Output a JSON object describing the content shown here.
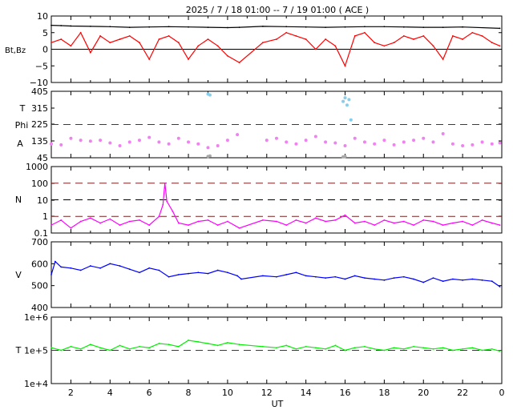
{
  "chart_data": {
    "title": "2025 /  7 / 18   01:00 --  7 / 19   01:00 ( ACE )",
    "xlabel": "UT",
    "x_ticks": [
      "2",
      "4",
      "6",
      "8",
      "10",
      "12",
      "14",
      "16",
      "18",
      "20",
      "22",
      "0"
    ],
    "panels": [
      {
        "id": "mag",
        "type": "line",
        "ylabel": "Bt,Bz",
        "ylim": [
          -10,
          10
        ],
        "y_ticks": [
          "10",
          "5",
          "0",
          "−5",
          "−10"
        ],
        "reference_lines": [
          {
            "value": 0,
            "color": "#000000",
            "style": "solid"
          }
        ],
        "series": [
          {
            "name": "Bt",
            "color": "#000000",
            "x": [
              1,
              1.5,
              2,
              3,
              4,
              5,
              6,
              7,
              8,
              9,
              10,
              10.6,
              11.8,
              13,
              14,
              15,
              16,
              17,
              18,
              19,
              20,
              21,
              22,
              23.9
            ],
            "values": [
              7.2,
              7.1,
              7,
              6.9,
              6.8,
              6.6,
              6.7,
              6.8,
              6.7,
              6.6,
              6.5,
              6.6,
              6.9,
              6.8,
              6.7,
              6.6,
              6.7,
              6.8,
              6.8,
              6.7,
              6.6,
              6.6,
              6.7,
              6.3
            ]
          },
          {
            "name": "Bz",
            "color": "#ff0000",
            "x": [
              1,
              1.5,
              2,
              2.5,
              3,
              3.5,
              4,
              4.5,
              5,
              5.5,
              6,
              6.5,
              7,
              7.5,
              8,
              8.5,
              9,
              9.5,
              10,
              10.6,
              11.8,
              12.5,
              13,
              13.5,
              14,
              14.5,
              15,
              15.5,
              16,
              16.5,
              17,
              17.5,
              18,
              18.5,
              19,
              19.5,
              20,
              20.5,
              21,
              21.5,
              22,
              22.5,
              23,
              23.5,
              23.9
            ],
            "values": [
              2,
              3,
              1,
              5,
              -1,
              4,
              2,
              3,
              4,
              2,
              -3,
              3,
              4,
              2,
              -3,
              1,
              3,
              1,
              -2,
              -4,
              2,
              3,
              5,
              4,
              3,
              0,
              3,
              1,
              -5,
              4,
              5,
              2,
              1,
              2,
              4,
              3,
              4,
              1,
              -3,
              4,
              3,
              5,
              4,
              2,
              1
            ]
          }
        ]
      },
      {
        "id": "angle",
        "type": "scatter",
        "ylabel_lines": [
          "T",
          "Phi",
          "A"
        ],
        "y_tick_texts": [
          "405",
          "315",
          "225",
          "135",
          "45"
        ],
        "ylim": [
          45,
          405
        ],
        "reference_lines": [
          {
            "value": 225,
            "color": "#7a2020",
            "style": "dashed"
          }
        ],
        "series": [
          {
            "name": "Phi",
            "color": "#ee82ee",
            "x": [
              1,
              1.5,
              2,
              2.5,
              3,
              3.5,
              4,
              4.5,
              5,
              5.5,
              6,
              6.5,
              7,
              7.5,
              8,
              8.5,
              9,
              9.5,
              10,
              10.5,
              12,
              12.5,
              13,
              13.5,
              14,
              14.5,
              15,
              15.5,
              16,
              16.5,
              17,
              17.5,
              18,
              18.5,
              19,
              19.5,
              20,
              20.5,
              21,
              21.5,
              22,
              22.5,
              23,
              23.5,
              23.9
            ],
            "values": [
              120,
              115,
              150,
              140,
              135,
              140,
              125,
              110,
              130,
              140,
              155,
              130,
              120,
              150,
              130,
              120,
              100,
              110,
              140,
              170,
              140,
              150,
              130,
              120,
              140,
              160,
              130,
              125,
              110,
              150,
              130,
              120,
              140,
              115,
              130,
              140,
              150,
              130,
              175,
              120,
              110,
              115,
              130,
              120,
              125
            ]
          },
          {
            "name": "Theta",
            "color": "#87ceeb",
            "x": [
              9,
              9.1,
              15.9,
              16,
              16.1,
              16.2,
              16.3
            ],
            "values": [
              390,
              385,
              350,
              370,
              330,
              360,
              250
            ]
          },
          {
            "name": "low",
            "color": "#a8a8a8",
            "x": [
              9,
              9.1,
              15.9,
              16
            ],
            "values": [
              52,
              55,
              50,
              52
            ]
          }
        ]
      },
      {
        "id": "density",
        "type": "line",
        "ylabel": "N",
        "y_tick_texts": [
          "1000",
          "100",
          "10",
          "1",
          "0.1"
        ],
        "log_ylim": [
          0.1,
          1000
        ],
        "reference_lines": [
          {
            "value": 100,
            "color": "#7a2020",
            "style": "dashed"
          },
          {
            "value": 10,
            "color": "#000000",
            "style": "dashed"
          },
          {
            "value": 1,
            "color": "#7a2020",
            "style": "dashed"
          }
        ],
        "series": [
          {
            "name": "N",
            "color": "#ff00ff",
            "x": [
              1,
              1.5,
              2,
              2.5,
              3,
              3.5,
              4,
              4.5,
              5,
              5.5,
              6,
              6.5,
              6.7,
              6.8,
              6.9,
              7.2,
              7.5,
              8,
              8.5,
              9,
              9.5,
              10,
              10.6,
              11.8,
              12.5,
              13,
              13.5,
              14,
              14.5,
              15,
              15.5,
              16,
              16.5,
              17,
              17.5,
              18,
              18.5,
              19,
              19.5,
              20,
              20.5,
              21,
              21.5,
              22,
              22.5,
              23,
              23.5,
              23.9
            ],
            "values": [
              0.3,
              0.6,
              0.2,
              0.5,
              0.8,
              0.4,
              0.7,
              0.3,
              0.5,
              0.6,
              0.3,
              1,
              5,
              100,
              8,
              2,
              0.4,
              0.3,
              0.5,
              0.6,
              0.3,
              0.5,
              0.2,
              0.6,
              0.5,
              0.3,
              0.6,
              0.4,
              0.8,
              0.5,
              0.6,
              1.2,
              0.4,
              0.5,
              0.3,
              0.6,
              0.4,
              0.5,
              0.3,
              0.6,
              0.5,
              0.3,
              0.4,
              0.5,
              0.3,
              0.6,
              0.4,
              0.3
            ]
          }
        ]
      },
      {
        "id": "speed",
        "type": "line",
        "ylabel": "V",
        "ylim": [
          400,
          700
        ],
        "y_ticks": [
          "700",
          "600",
          "500",
          "400"
        ],
        "series": [
          {
            "name": "V",
            "color": "#0000ff",
            "x": [
              1,
              1.2,
              1.5,
              2,
              2.5,
              3,
              3.5,
              4,
              4.5,
              5,
              5.5,
              6,
              6.5,
              7,
              7.5,
              8,
              8.5,
              9,
              9.5,
              10,
              10.5,
              10.7,
              11.8,
              12.5,
              13,
              13.5,
              14,
              14.5,
              15,
              15.5,
              16,
              16.5,
              17,
              17.5,
              18,
              18.5,
              19,
              19.5,
              20,
              20.5,
              21,
              21.5,
              22,
              22.5,
              23,
              23.5,
              23.9
            ],
            "values": [
              550,
              610,
              585,
              580,
              570,
              590,
              580,
              600,
              590,
              575,
              560,
              580,
              570,
              540,
              550,
              555,
              560,
              555,
              570,
              560,
              545,
              530,
              545,
              540,
              550,
              560,
              545,
              540,
              535,
              540,
              530,
              545,
              535,
              530,
              525,
              535,
              540,
              530,
              515,
              535,
              520,
              530,
              525,
              530,
              525,
              520,
              495
            ]
          }
        ]
      },
      {
        "id": "temperature",
        "type": "line",
        "ylabel": "T",
        "y_tick_texts": [
          "1e+6",
          "1e+5",
          "1e+4"
        ],
        "log_ylim": [
          10000,
          1000000
        ],
        "reference_lines": [
          {
            "value": 100000,
            "color": "#7a2020",
            "style": "dashed"
          }
        ],
        "series": [
          {
            "name": "T",
            "color": "#00ee00",
            "x": [
              1,
              1.5,
              2,
              2.5,
              3,
              3.5,
              4,
              4.5,
              5,
              5.5,
              6,
              6.5,
              7,
              7.5,
              8,
              8.5,
              9,
              9.5,
              10,
              10.6,
              11.8,
              12.5,
              13,
              13.5,
              14,
              14.5,
              15,
              15.5,
              16,
              16.5,
              17,
              17.5,
              18,
              18.5,
              19,
              19.5,
              20,
              20.5,
              21,
              21.5,
              22,
              22.5,
              23,
              23.5,
              23.9
            ],
            "values": [
              120000,
              100000,
              130000,
              110000,
              150000,
              120000,
              100000,
              140000,
              110000,
              130000,
              120000,
              160000,
              150000,
              130000,
              200000,
              180000,
              160000,
              140000,
              170000,
              150000,
              130000,
              120000,
              140000,
              110000,
              130000,
              120000,
              110000,
              140000,
              100000,
              120000,
              130000,
              110000,
              100000,
              120000,
              110000,
              130000,
              120000,
              110000,
              120000,
              100000,
              110000,
              120000,
              100000,
              110000,
              95000
            ]
          }
        ]
      }
    ]
  }
}
